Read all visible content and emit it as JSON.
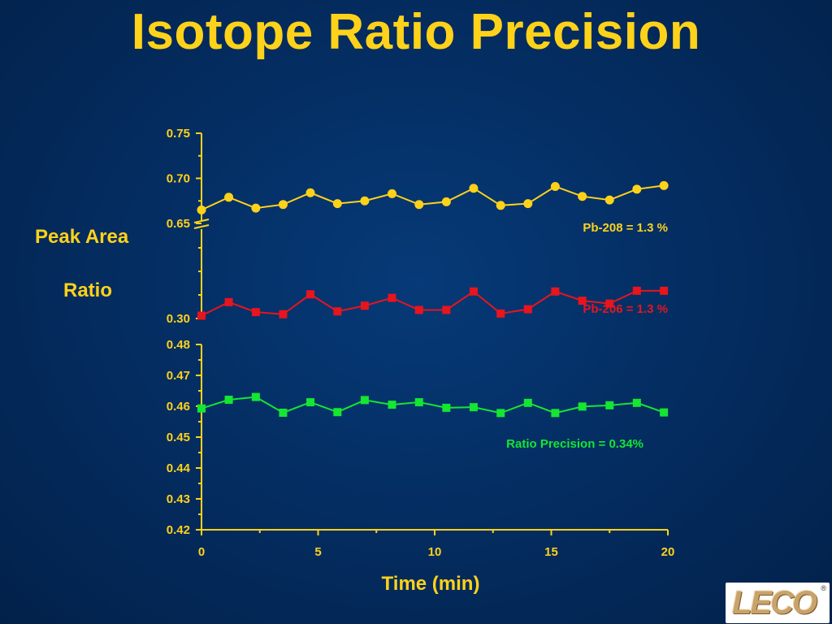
{
  "title": "Isotope Ratio Precision",
  "y_label_line1": "Peak Area",
  "y_label_line2": "Ratio",
  "logo": {
    "text": "LECO",
    "reg": "®"
  },
  "colors": {
    "axis": "#ffd21a",
    "pb208": "#ffd21a",
    "pb206": "#e8141e",
    "ratio": "#14e632",
    "background": "#042e63"
  },
  "chart_data": {
    "type": "line",
    "xlabel": "Time (min)",
    "x_ticks": [
      0,
      5,
      10,
      15,
      20
    ],
    "x_range": [
      0,
      20
    ],
    "x": [
      0,
      1.17,
      2.33,
      3.5,
      4.67,
      5.83,
      7.0,
      8.17,
      9.33,
      10.5,
      11.67,
      12.83,
      14.0,
      15.17,
      16.33,
      17.5,
      18.67,
      19.83
    ],
    "upper_panel": {
      "y_tick_labels": [
        "0.75",
        "0.70",
        "0.65",
        "0.30"
      ],
      "axis_break_between": [
        "0.65",
        "0.30"
      ],
      "series": [
        {
          "name": "Pb-208",
          "annotation": "Pb-208 = 1.3 %",
          "marker": "circle",
          "values": [
            0.665,
            0.679,
            0.667,
            0.671,
            0.684,
            0.672,
            0.675,
            0.683,
            0.671,
            0.674,
            0.689,
            0.67,
            0.672,
            0.691,
            0.68,
            0.676,
            0.688,
            0.692
          ]
        },
        {
          "name": "Pb-206",
          "annotation": "Pb-206 =  1.3 %",
          "marker": "square",
          "values": [
            0.282,
            0.2915,
            0.2845,
            0.283,
            0.297,
            0.285,
            0.289,
            0.2945,
            0.286,
            0.286,
            0.299,
            0.2835,
            0.2865,
            0.299,
            0.2925,
            0.2905,
            0.2995,
            0.2995
          ]
        }
      ]
    },
    "lower_panel": {
      "y_tick_labels": [
        "0.48",
        "0.47",
        "0.46",
        "0.45",
        "0.44",
        "0.43",
        "0.42"
      ],
      "ylim": [
        0.42,
        0.48
      ],
      "series": [
        {
          "name": "Ratio",
          "annotation": "Ratio Precision = 0.34%",
          "marker": "square",
          "values": [
            0.4593,
            0.4621,
            0.463,
            0.4579,
            0.4613,
            0.4581,
            0.462,
            0.4605,
            0.4613,
            0.4595,
            0.4597,
            0.4578,
            0.4611,
            0.4578,
            0.4599,
            0.4603,
            0.4611,
            0.458
          ]
        }
      ]
    }
  }
}
